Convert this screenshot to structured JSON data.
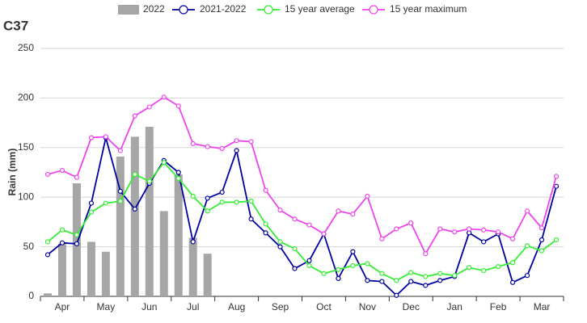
{
  "chart_data": {
    "type": "line",
    "title": "C37",
    "y_label": "Rain (mm)",
    "categories": [
      null,
      "Apr",
      null,
      null,
      "May",
      null,
      null,
      "Jun",
      null,
      null,
      "Jul",
      null,
      null,
      "Aug",
      null,
      null,
      "Sep",
      null,
      null,
      "Oct",
      null,
      null,
      "Nov",
      null,
      null,
      "Dec",
      null,
      null,
      "Jan",
      null,
      null,
      "Feb",
      null,
      null,
      "Mar",
      null
    ],
    "ylim": [
      0,
      250
    ],
    "yticks": [
      0,
      50,
      100,
      150,
      200,
      250
    ],
    "grid": true,
    "legend": "top",
    "series": [
      {
        "name": "2022",
        "type": "bar",
        "color": "#a6a6a6",
        "values": [
          3,
          53,
          114,
          55,
          45,
          141,
          161,
          171,
          86,
          123,
          59,
          43,
          null,
          null,
          null,
          null,
          null,
          null,
          null,
          null,
          null,
          null,
          null,
          null,
          null,
          null,
          null,
          null,
          null,
          null,
          null,
          null,
          null,
          null,
          null,
          null
        ]
      },
      {
        "name": "2021-2022",
        "type": "line",
        "color": "#0000a0",
        "values": [
          42,
          54,
          53,
          94,
          160,
          106,
          88,
          114,
          137,
          125,
          55,
          99,
          105,
          147,
          78,
          64,
          50,
          28,
          36,
          63,
          18,
          45,
          16,
          15,
          1,
          15,
          11,
          16,
          20,
          64,
          55,
          63,
          14,
          21,
          57,
          111
        ]
      },
      {
        "name": "15 year average",
        "type": "line",
        "color": "#33ee33",
        "values": [
          55,
          67,
          62,
          85,
          94,
          96,
          123,
          116,
          135,
          119,
          101,
          86,
          95,
          95,
          96,
          73,
          55,
          48,
          31,
          23,
          27,
          31,
          33,
          23,
          16,
          24,
          20,
          23,
          21,
          29,
          26,
          30,
          34,
          51,
          46,
          57
        ]
      },
      {
        "name": "15 year maximum",
        "type": "line",
        "color": "#ee44ee",
        "values": [
          123,
          127,
          120,
          160,
          161,
          147,
          182,
          191,
          201,
          192,
          154,
          151,
          149,
          157,
          156,
          107,
          87,
          78,
          72,
          63,
          86,
          83,
          101,
          58,
          68,
          74,
          43,
          68,
          65,
          68,
          67,
          65,
          58,
          86,
          69,
          121
        ]
      }
    ]
  }
}
